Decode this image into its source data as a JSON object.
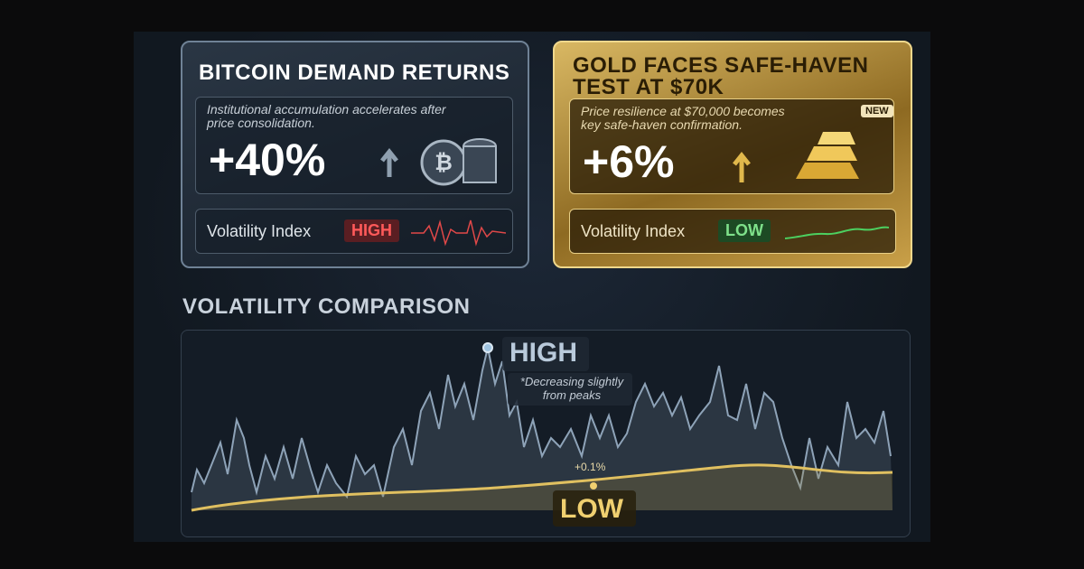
{
  "cards": [
    {
      "title": "BITCOIN DEMAND RETURNS",
      "description": "Institutional accumulation accelerates after price consolidation.",
      "change": "+40%",
      "volatility_label": "Volatility Index",
      "volatility_level": "HIGH"
    },
    {
      "title": "GOLD FACES SAFE-HAVEN TEST AT $70K",
      "description": "Price resilience at $70,000 becomes key safe-haven confirmation.",
      "badge": "NEW",
      "change": "+6%",
      "volatility_label": "Volatility Index",
      "volatility_level": "LOW"
    }
  ],
  "comparison": {
    "title": "VOLATILITY COMPARISON",
    "high_label": "HIGH",
    "note": "*Decreasing slightly from peaks",
    "change_label": "+0.1%",
    "low_label": "LOW"
  }
}
